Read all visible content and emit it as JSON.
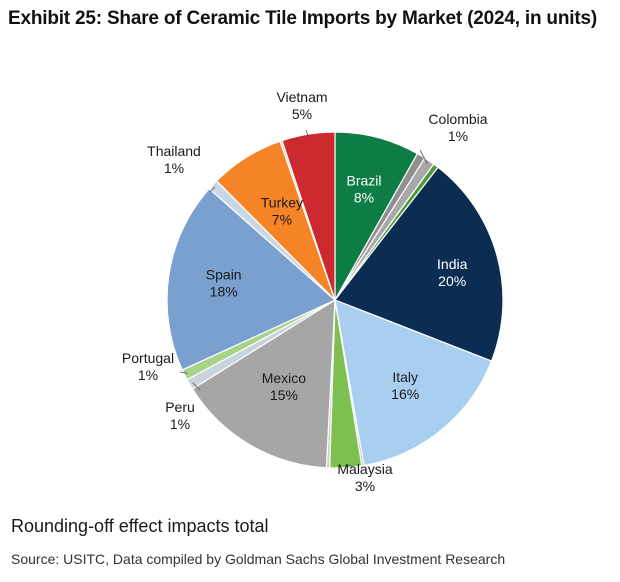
{
  "header": {
    "title": "Exhibit 25: Share of Ceramic Tile Imports by Market (2024, in units)"
  },
  "footer": {
    "note": "Rounding-off effect impacts total",
    "source": "Source: USITC, Data compiled by Goldman Sachs Global Investment Research"
  },
  "chart_data": {
    "type": "pie",
    "title": "Exhibit 25: Share of Ceramic Tile Imports by Market (2024, in units)",
    "start": "12 o'clock",
    "direction": "clockwise",
    "slices": [
      {
        "name": "Brazil",
        "value": 8,
        "label": "8%",
        "color": "#0e7c45"
      },
      {
        "name": "",
        "value": 0.8,
        "label": "",
        "color": "#8f8f8f"
      },
      {
        "name": "Colombia",
        "value": 1,
        "label": "1%",
        "color": "#a8a8a8"
      },
      {
        "name": "",
        "value": 0.5,
        "label": "",
        "color": "#4c9a3a"
      },
      {
        "name": "India",
        "value": 20,
        "label": "20%",
        "color": "#0b2d52"
      },
      {
        "name": "Italy",
        "value": 16,
        "label": "16%",
        "color": "#a9cff0"
      },
      {
        "name": "",
        "value": 0.2,
        "label": "",
        "color": "#bdbdbd"
      },
      {
        "name": "Malaysia",
        "value": 3,
        "label": "3%",
        "color": "#7dc04f"
      },
      {
        "name": "",
        "value": 0.3,
        "label": "",
        "color": "#cccccc"
      },
      {
        "name": "Mexico",
        "value": 15,
        "label": "15%",
        "color": "#a6a6a6"
      },
      {
        "name": "Peru",
        "value": 1,
        "label": "1%",
        "color": "#c9d3dc"
      },
      {
        "name": "Portugal",
        "value": 1,
        "label": "1%",
        "color": "#a7d489"
      },
      {
        "name": "Spain",
        "value": 18,
        "label": "18%",
        "color": "#7aa0cf"
      },
      {
        "name": "Thailand",
        "value": 1,
        "label": "1%",
        "color": "#c9d7e4"
      },
      {
        "name": "Turkey",
        "value": 7,
        "label": "7%",
        "color": "#f58426"
      },
      {
        "name": "",
        "value": 0.2,
        "label": "",
        "color": "#c8c8c8"
      },
      {
        "name": "Vietnam",
        "value": 5,
        "label": "5%",
        "color": "#cc2a2f"
      }
    ]
  }
}
